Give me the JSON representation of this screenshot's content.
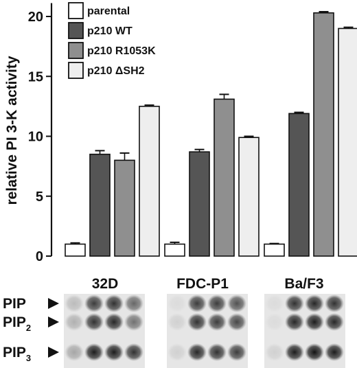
{
  "chart_data": {
    "type": "bar",
    "ylabel": "relative PI 3-K activity",
    "ylim": [
      0,
      21
    ],
    "yticks": [
      "0",
      "5",
      "10",
      "15",
      "20"
    ],
    "categories": [
      "32D",
      "FDC-P1",
      "Ba/F3"
    ],
    "series": [
      {
        "name": "parental",
        "color": "#ffffff",
        "values": [
          1.0,
          1.0,
          1.0
        ],
        "errors": [
          0.1,
          0.15,
          0.05
        ]
      },
      {
        "name": "p210 WT",
        "color": "#555555",
        "values": [
          8.5,
          8.7,
          11.9
        ],
        "errors": [
          0.3,
          0.2,
          0.1
        ]
      },
      {
        "name": "p210 R1053K",
        "color": "#8f8f8f",
        "values": [
          8.0,
          13.1,
          20.3
        ],
        "errors": [
          0.6,
          0.4,
          0.1
        ]
      },
      {
        "name": "p210 ΔSH2",
        "color": "#eeeeee",
        "values": [
          12.5,
          9.9,
          19.0
        ],
        "errors": [
          0.1,
          0.1,
          0.1
        ]
      }
    ],
    "legend_position": "top-left"
  },
  "blot": {
    "labels": [
      {
        "text": "PIP",
        "sub": ""
      },
      {
        "text": "PIP",
        "sub": "2"
      },
      {
        "text": "PIP",
        "sub": "3"
      }
    ],
    "arrow_icon": "arrowhead-right-icon",
    "panels": [
      {
        "name": "32D",
        "spots": [
          [
            0.2,
            0.8,
            0.85,
            0.6
          ],
          [
            0.25,
            0.85,
            0.9,
            0.55
          ],
          [
            0.3,
            0.95,
            0.95,
            0.85
          ]
        ]
      },
      {
        "name": "FDC-P1",
        "spots": [
          [
            0.05,
            0.8,
            0.8,
            0.7
          ],
          [
            0.1,
            0.85,
            0.8,
            0.75
          ],
          [
            0.1,
            0.9,
            0.85,
            0.8
          ]
        ]
      },
      {
        "name": "Ba/F3",
        "spots": [
          [
            0.05,
            0.85,
            0.9,
            0.85
          ],
          [
            0.05,
            0.9,
            0.95,
            0.9
          ],
          [
            0.1,
            0.95,
            1.0,
            0.95
          ]
        ]
      }
    ]
  }
}
